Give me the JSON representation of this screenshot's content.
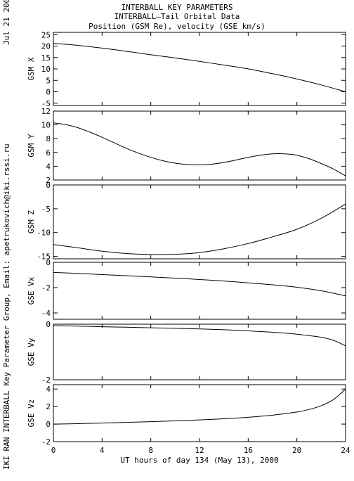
{
  "header": {
    "line1": "INTERBALL KEY PARAMETERS",
    "line2": "INTERBALL—Tail Orbital Data",
    "line3": "Position (GSM Re), velocity (GSE km/s)"
  },
  "side": {
    "date": "Jul 21 2000",
    "credit": "IKI RAN INTERBALL Key Parameter Group, Email: apetrukovich@iki.rssi.ru"
  },
  "chart_data": {
    "type": "line",
    "xlabel": "UT hours of day 134 (May 13), 2000",
    "xlim": [
      0,
      24
    ],
    "xticks": [
      0,
      4,
      8,
      12,
      16,
      20,
      24
    ],
    "panels": [
      {
        "ylabel": "GSM X",
        "ylim": [
          -6,
          26
        ],
        "yticks": [
          25,
          20,
          15,
          10,
          5,
          0,
          -5
        ],
        "x": [
          0,
          2,
          4,
          6,
          8,
          10,
          12,
          14,
          16,
          18,
          20,
          22,
          24
        ],
        "y": [
          21.2,
          20.3,
          19.1,
          17.7,
          16.2,
          14.8,
          13.3,
          11.7,
          10.0,
          7.9,
          5.6,
          3.0,
          0.0
        ]
      },
      {
        "ylabel": "GSM Y",
        "ylim": [
          2,
          12
        ],
        "yticks": [
          12,
          10,
          8,
          6,
          4,
          2
        ],
        "x": [
          0,
          1,
          2,
          3,
          4,
          5,
          6,
          7,
          8,
          9,
          10,
          11,
          12,
          13,
          14,
          15,
          16,
          17,
          18,
          19,
          20,
          21,
          22,
          23,
          24
        ],
        "y": [
          10.3,
          10.05,
          9.6,
          8.95,
          8.2,
          7.4,
          6.6,
          5.9,
          5.3,
          4.8,
          4.45,
          4.25,
          4.2,
          4.3,
          4.55,
          4.9,
          5.3,
          5.6,
          5.8,
          5.8,
          5.6,
          5.1,
          4.4,
          3.6,
          2.6
        ]
      },
      {
        "ylabel": "GSM Z",
        "ylim": [
          -15.5,
          0
        ],
        "yticks": [
          0,
          -5,
          -10,
          -15
        ],
        "x": [
          0,
          2,
          4,
          6,
          8,
          10,
          12,
          14,
          16,
          18,
          20,
          22,
          24
        ],
        "y": [
          -12.5,
          -13.2,
          -13.9,
          -14.4,
          -14.6,
          -14.55,
          -14.2,
          -13.4,
          -12.3,
          -10.9,
          -9.3,
          -7.0,
          -4.0
        ]
      },
      {
        "ylabel": "GSE Vx",
        "ylim": [
          -4.5,
          0
        ],
        "yticks": [
          0,
          -2,
          -4
        ],
        "x": [
          0,
          2,
          4,
          6,
          8,
          10,
          12,
          14,
          16,
          18,
          20,
          22,
          24
        ],
        "y": [
          -0.8,
          -0.88,
          -0.97,
          -1.06,
          -1.15,
          -1.25,
          -1.36,
          -1.48,
          -1.62,
          -1.78,
          -1.97,
          -2.25,
          -2.65
        ]
      },
      {
        "ylabel": "GSE Vy",
        "ylim": [
          -2,
          0
        ],
        "yticks": [
          0,
          -2
        ],
        "x": [
          0,
          2,
          4,
          6,
          8,
          10,
          12,
          14,
          16,
          18,
          20,
          22,
          23,
          24
        ],
        "y": [
          -0.05,
          -0.07,
          -0.09,
          -0.11,
          -0.13,
          -0.15,
          -0.17,
          -0.2,
          -0.24,
          -0.29,
          -0.36,
          -0.47,
          -0.58,
          -0.78
        ]
      },
      {
        "ylabel": "GSE Vz",
        "ylim": [
          -2,
          4.5
        ],
        "yticks": [
          4,
          2,
          0,
          -2
        ],
        "x": [
          0,
          2,
          4,
          6,
          8,
          10,
          12,
          14,
          16,
          18,
          20,
          21,
          22,
          23,
          24
        ],
        "y": [
          0.0,
          0.05,
          0.12,
          0.2,
          0.28,
          0.37,
          0.48,
          0.61,
          0.78,
          1.02,
          1.38,
          1.67,
          2.1,
          2.8,
          4.0
        ]
      }
    ]
  }
}
